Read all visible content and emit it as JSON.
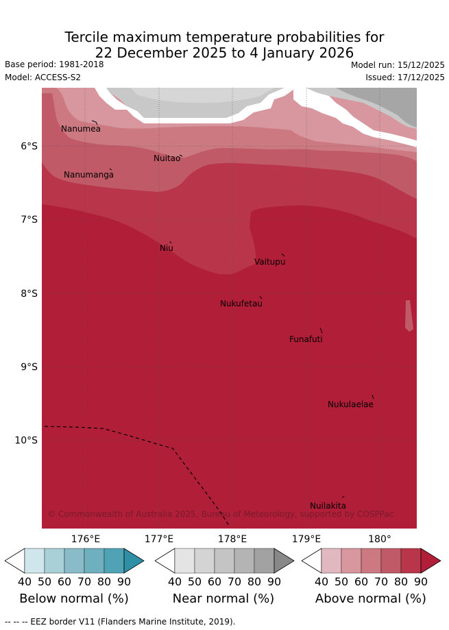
{
  "title": {
    "line1": "Tercile maximum temperature probabilities for",
    "line2": "22 December 2025 to 4 January 2026"
  },
  "meta": {
    "base_period": "Base period: 1981-2018",
    "model": "Model: ACCESS-S2",
    "model_run": "Model run: 15/12/2025",
    "issued": "Issued: 17/12/2025"
  },
  "map": {
    "lat_labels": [
      "6°S",
      "7°S",
      "8°S",
      "9°S",
      "10°S"
    ],
    "lon_labels": [
      "176°E",
      "177°E",
      "178°E",
      "179°E",
      "180°"
    ],
    "places": [
      "Nanumea",
      "Nuitao",
      "Nanumanga",
      "Niu",
      "Vaitupu",
      "Nukufetau",
      "Funafuti",
      "Nukulaelae",
      "Nuilakita"
    ],
    "copyright": "© Commonwealth of Australia 2025, Bureau of Meteorology, supported by COSPPac"
  },
  "colorbars": [
    {
      "label": "Below normal (%)",
      "ticks": [
        "40",
        "50",
        "60",
        "70",
        "80",
        "90"
      ],
      "colors": [
        "#cfe6ec",
        "#a9cfd7",
        "#89bcc8",
        "#6fb0bf",
        "#4fa3b4",
        "#2f8fa4"
      ]
    },
    {
      "label": "Near normal (%)",
      "ticks": [
        "40",
        "50",
        "60",
        "70",
        "80",
        "90"
      ],
      "colors": [
        "#e4e4e4",
        "#d4d4d4",
        "#c4c4c4",
        "#b4b4b4",
        "#a2a2a2",
        "#888888"
      ]
    },
    {
      "label": "Above normal (%)",
      "ticks": [
        "40",
        "50",
        "60",
        "70",
        "80",
        "90"
      ],
      "colors": [
        "#e2b8c0",
        "#d8979f",
        "#cc7981",
        "#c05a66",
        "#b9364a",
        "#b01e38"
      ]
    }
  ],
  "footnote": "--  --  -- EEZ border V11 (Flanders Marine Institute, 2019)."
}
